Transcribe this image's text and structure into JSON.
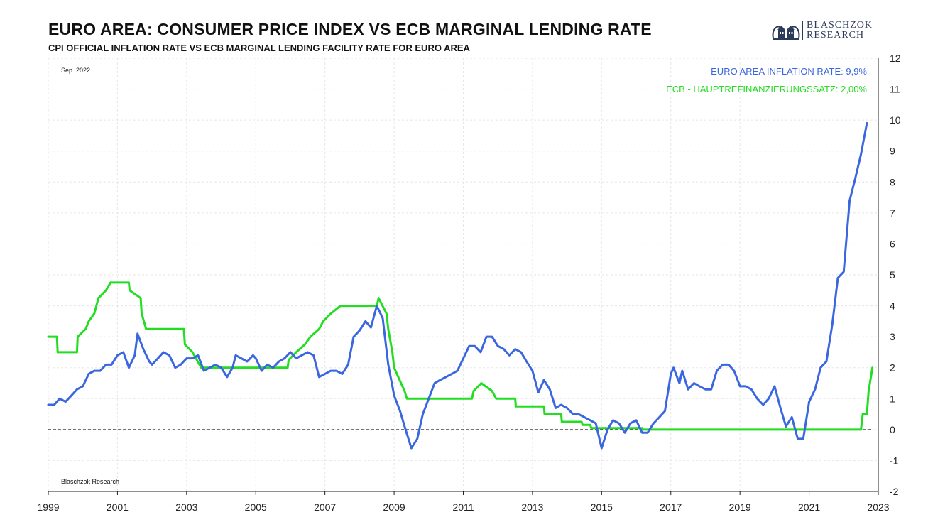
{
  "header": {
    "title": "EURO AREA: CONSUMER PRICE INDEX VS ECB MARGINAL LENDING RATE",
    "subtitle": "CPI OFFICIAL INFLATION RATE VS ECB MARGINAL LENDING FACILITY RATE FOR EURO AREA"
  },
  "logo": {
    "line1": "BLASCHZOK",
    "line2": "RESEARCH",
    "icon": "twin-building-emblem-icon"
  },
  "annotations": {
    "date": "Sep. 2022",
    "source": "Blaschzok Research"
  },
  "legend": {
    "inflation": "EURO AREA INFLATION RATE: 9,9%",
    "ecb": "ECB - HAUPTREFINANZIERUNGSSATZ: 2,00%"
  },
  "colors": {
    "inflation": "#3a66e0",
    "ecb": "#22dd22",
    "zero_line": "#222222",
    "grid": "#e6e6e6"
  },
  "chart_data": {
    "type": "line",
    "title": "EURO AREA: CONSUMER PRICE INDEX VS ECB MARGINAL LENDING RATE",
    "xlim": [
      1999.0,
      2023.0
    ],
    "ylim": [
      -2,
      12
    ],
    "x_ticks": [
      "1999",
      "2001",
      "2003",
      "2005",
      "2007",
      "2009",
      "2011",
      "2013",
      "2015",
      "2017",
      "2019",
      "2021",
      "2023"
    ],
    "y_ticks": [
      "12",
      "11",
      "10",
      "9",
      "8",
      "7",
      "6",
      "5",
      "4",
      "3",
      "2",
      "1",
      "0",
      "-1",
      "-2"
    ],
    "y_axis_position": "right",
    "grid": true,
    "legend_position": "top-right",
    "reference_line": {
      "y": 0,
      "style": "dashed"
    },
    "series": [
      {
        "name": "EURO AREA INFLATION RATE",
        "points": [
          [
            1999.0,
            0.8
          ],
          [
            1999.17,
            0.8
          ],
          [
            1999.33,
            1.0
          ],
          [
            1999.5,
            0.9
          ],
          [
            1999.67,
            1.1
          ],
          [
            1999.83,
            1.3
          ],
          [
            2000.0,
            1.4
          ],
          [
            2000.17,
            1.8
          ],
          [
            2000.33,
            1.9
          ],
          [
            2000.5,
            1.9
          ],
          [
            2000.67,
            2.1
          ],
          [
            2000.83,
            2.1
          ],
          [
            2001.0,
            2.4
          ],
          [
            2001.17,
            2.5
          ],
          [
            2001.33,
            2.0
          ],
          [
            2001.5,
            2.4
          ],
          [
            2001.58,
            3.1
          ],
          [
            2001.75,
            2.6
          ],
          [
            2001.92,
            2.2
          ],
          [
            2002.0,
            2.1
          ],
          [
            2002.17,
            2.3
          ],
          [
            2002.33,
            2.5
          ],
          [
            2002.5,
            2.4
          ],
          [
            2002.67,
            2.0
          ],
          [
            2002.83,
            2.1
          ],
          [
            2003.0,
            2.3
          ],
          [
            2003.17,
            2.3
          ],
          [
            2003.33,
            2.4
          ],
          [
            2003.5,
            1.9
          ],
          [
            2003.67,
            2.0
          ],
          [
            2003.83,
            2.1
          ],
          [
            2004.0,
            2.0
          ],
          [
            2004.17,
            1.7
          ],
          [
            2004.33,
            2.0
          ],
          [
            2004.42,
            2.4
          ],
          [
            2004.58,
            2.3
          ],
          [
            2004.75,
            2.2
          ],
          [
            2004.92,
            2.4
          ],
          [
            2005.0,
            2.3
          ],
          [
            2005.17,
            1.9
          ],
          [
            2005.33,
            2.1
          ],
          [
            2005.5,
            2.0
          ],
          [
            2005.67,
            2.2
          ],
          [
            2005.83,
            2.3
          ],
          [
            2006.0,
            2.5
          ],
          [
            2006.17,
            2.3
          ],
          [
            2006.33,
            2.4
          ],
          [
            2006.5,
            2.5
          ],
          [
            2006.67,
            2.4
          ],
          [
            2006.83,
            1.7
          ],
          [
            2007.0,
            1.8
          ],
          [
            2007.17,
            1.9
          ],
          [
            2007.33,
            1.9
          ],
          [
            2007.5,
            1.8
          ],
          [
            2007.67,
            2.1
          ],
          [
            2007.83,
            3.0
          ],
          [
            2008.0,
            3.2
          ],
          [
            2008.17,
            3.5
          ],
          [
            2008.33,
            3.3
          ],
          [
            2008.5,
            4.0
          ],
          [
            2008.67,
            3.6
          ],
          [
            2008.83,
            2.1
          ],
          [
            2009.0,
            1.1
          ],
          [
            2009.17,
            0.6
          ],
          [
            2009.33,
            0.0
          ],
          [
            2009.5,
            -0.6
          ],
          [
            2009.67,
            -0.3
          ],
          [
            2009.83,
            0.5
          ],
          [
            2010.0,
            1.0
          ],
          [
            2010.17,
            1.5
          ],
          [
            2010.33,
            1.6
          ],
          [
            2010.5,
            1.7
          ],
          [
            2010.67,
            1.8
          ],
          [
            2010.83,
            1.9
          ],
          [
            2011.0,
            2.3
          ],
          [
            2011.17,
            2.7
          ],
          [
            2011.33,
            2.7
          ],
          [
            2011.5,
            2.5
          ],
          [
            2011.67,
            3.0
          ],
          [
            2011.83,
            3.0
          ],
          [
            2012.0,
            2.7
          ],
          [
            2012.17,
            2.6
          ],
          [
            2012.33,
            2.4
          ],
          [
            2012.5,
            2.6
          ],
          [
            2012.67,
            2.5
          ],
          [
            2012.83,
            2.2
          ],
          [
            2013.0,
            1.9
          ],
          [
            2013.17,
            1.2
          ],
          [
            2013.33,
            1.6
          ],
          [
            2013.5,
            1.3
          ],
          [
            2013.67,
            0.7
          ],
          [
            2013.83,
            0.8
          ],
          [
            2014.0,
            0.7
          ],
          [
            2014.17,
            0.5
          ],
          [
            2014.33,
            0.5
          ],
          [
            2014.5,
            0.4
          ],
          [
            2014.67,
            0.3
          ],
          [
            2014.83,
            0.2
          ],
          [
            2015.0,
            -0.6
          ],
          [
            2015.17,
            0.0
          ],
          [
            2015.33,
            0.3
          ],
          [
            2015.5,
            0.2
          ],
          [
            2015.67,
            -0.1
          ],
          [
            2015.83,
            0.2
          ],
          [
            2016.0,
            0.3
          ],
          [
            2016.17,
            -0.1
          ],
          [
            2016.33,
            -0.1
          ],
          [
            2016.5,
            0.2
          ],
          [
            2016.67,
            0.4
          ],
          [
            2016.83,
            0.6
          ],
          [
            2017.0,
            1.8
          ],
          [
            2017.08,
            2.0
          ],
          [
            2017.25,
            1.5
          ],
          [
            2017.33,
            1.9
          ],
          [
            2017.5,
            1.3
          ],
          [
            2017.67,
            1.5
          ],
          [
            2017.83,
            1.4
          ],
          [
            2018.0,
            1.3
          ],
          [
            2018.17,
            1.3
          ],
          [
            2018.33,
            1.9
          ],
          [
            2018.5,
            2.1
          ],
          [
            2018.67,
            2.1
          ],
          [
            2018.83,
            1.9
          ],
          [
            2019.0,
            1.4
          ],
          [
            2019.17,
            1.4
          ],
          [
            2019.33,
            1.3
          ],
          [
            2019.5,
            1.0
          ],
          [
            2019.67,
            0.8
          ],
          [
            2019.83,
            1.0
          ],
          [
            2020.0,
            1.4
          ],
          [
            2020.17,
            0.7
          ],
          [
            2020.33,
            0.1
          ],
          [
            2020.5,
            0.4
          ],
          [
            2020.67,
            -0.3
          ],
          [
            2020.83,
            -0.3
          ],
          [
            2021.0,
            0.9
          ],
          [
            2021.17,
            1.3
          ],
          [
            2021.33,
            2.0
          ],
          [
            2021.5,
            2.2
          ],
          [
            2021.67,
            3.4
          ],
          [
            2021.83,
            4.9
          ],
          [
            2022.0,
            5.1
          ],
          [
            2022.17,
            7.4
          ],
          [
            2022.33,
            8.1
          ],
          [
            2022.5,
            8.9
          ],
          [
            2022.67,
            9.9
          ]
        ]
      },
      {
        "name": "ECB - HAUPTREFINANZIERUNGSSATZ",
        "points": [
          [
            1999.0,
            3.0
          ],
          [
            1999.25,
            3.0
          ],
          [
            1999.27,
            2.5
          ],
          [
            1999.83,
            2.5
          ],
          [
            1999.85,
            3.0
          ],
          [
            2000.08,
            3.25
          ],
          [
            2000.17,
            3.5
          ],
          [
            2000.33,
            3.75
          ],
          [
            2000.45,
            4.25
          ],
          [
            2000.67,
            4.5
          ],
          [
            2000.8,
            4.75
          ],
          [
            2001.33,
            4.75
          ],
          [
            2001.35,
            4.5
          ],
          [
            2001.67,
            4.25
          ],
          [
            2001.7,
            3.75
          ],
          [
            2001.83,
            3.25
          ],
          [
            2002.92,
            3.25
          ],
          [
            2002.95,
            2.75
          ],
          [
            2003.17,
            2.5
          ],
          [
            2003.42,
            2.0
          ],
          [
            2005.92,
            2.0
          ],
          [
            2005.95,
            2.25
          ],
          [
            2006.17,
            2.5
          ],
          [
            2006.42,
            2.75
          ],
          [
            2006.58,
            3.0
          ],
          [
            2006.83,
            3.25
          ],
          [
            2006.95,
            3.5
          ],
          [
            2007.17,
            3.75
          ],
          [
            2007.45,
            4.0
          ],
          [
            2008.5,
            4.0
          ],
          [
            2008.55,
            4.25
          ],
          [
            2008.78,
            3.75
          ],
          [
            2008.83,
            3.25
          ],
          [
            2008.95,
            2.5
          ],
          [
            2009.0,
            2.0
          ],
          [
            2009.2,
            1.5
          ],
          [
            2009.3,
            1.25
          ],
          [
            2009.37,
            1.0
          ],
          [
            2011.25,
            1.0
          ],
          [
            2011.3,
            1.25
          ],
          [
            2011.52,
            1.5
          ],
          [
            2011.83,
            1.25
          ],
          [
            2011.95,
            1.0
          ],
          [
            2012.5,
            1.0
          ],
          [
            2012.52,
            0.75
          ],
          [
            2013.33,
            0.75
          ],
          [
            2013.35,
            0.5
          ],
          [
            2013.83,
            0.5
          ],
          [
            2013.85,
            0.25
          ],
          [
            2014.42,
            0.25
          ],
          [
            2014.45,
            0.15
          ],
          [
            2014.67,
            0.15
          ],
          [
            2014.7,
            0.05
          ],
          [
            2016.17,
            0.05
          ],
          [
            2016.2,
            0.0
          ],
          [
            2022.5,
            0.0
          ],
          [
            2022.55,
            0.5
          ],
          [
            2022.67,
            0.5
          ],
          [
            2022.72,
            1.25
          ],
          [
            2022.83,
            2.0
          ]
        ]
      }
    ]
  }
}
